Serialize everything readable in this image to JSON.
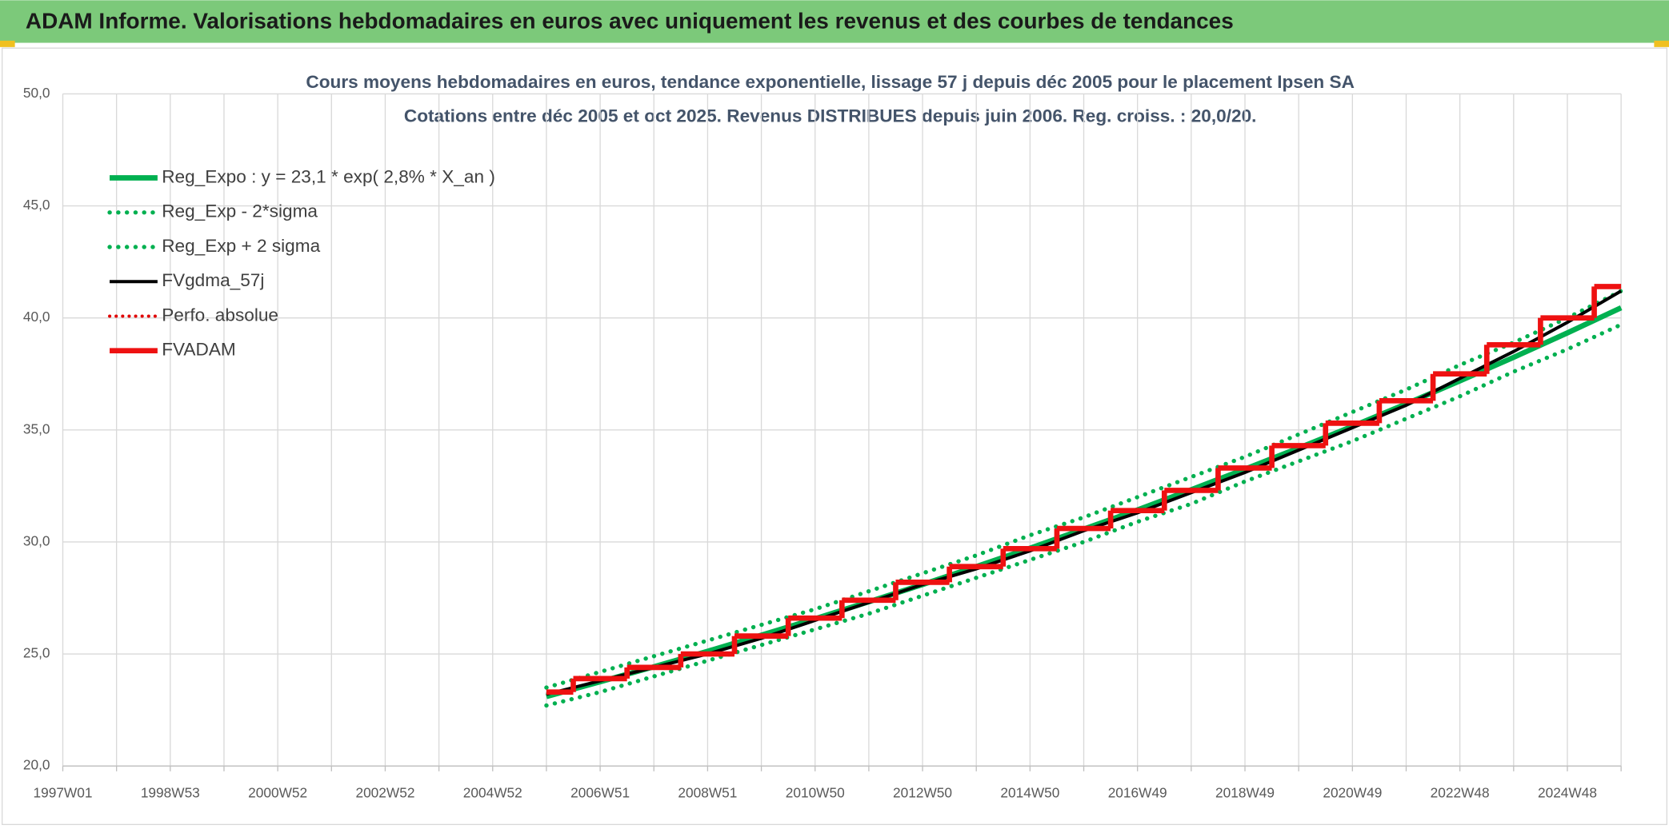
{
  "header": {
    "title": "ADAM Informe. Valorisations hebdomadaires en euros avec uniquement les revenus et des courbes de tendances"
  },
  "chart_data": {
    "type": "line",
    "title": "Cours moyens hebdomadaires en euros, tendance exponentielle, lissage 57 j depuis déc 2005 pour le placement Ipsen SA",
    "subtitle": "Cotations entre déc 2005 et oct 2025. Revenus DISTRIBUES depuis juin 2006. Reg. croiss. : 20,0/20.",
    "categories": [
      "1997W01",
      null,
      "1998W53",
      null,
      "2000W52",
      null,
      "2002W52",
      null,
      "2004W52",
      null,
      "2006W51",
      null,
      "2008W51",
      null,
      "2010W50",
      null,
      "2012W50",
      null,
      "2014W50",
      null,
      "2016W49",
      null,
      "2018W49",
      null,
      "2020W49",
      null,
      "2022W48",
      null,
      "2024W48",
      null
    ],
    "ylim": [
      20,
      50
    ],
    "yticks": [
      {
        "value": 20,
        "label": "20,0"
      },
      {
        "value": 25,
        "label": "25,0"
      },
      {
        "value": 30,
        "label": "30,0"
      },
      {
        "value": 35,
        "label": "35,0"
      },
      {
        "value": 40,
        "label": "40,0"
      },
      {
        "value": 45,
        "label": "45,0"
      },
      {
        "value": 50,
        "label": "50,0"
      }
    ],
    "grid": true,
    "legend": "top-left",
    "series": [
      {
        "name": "Reg_Expo : y = 23,1 * exp( 2,8% *  X_an )",
        "color": "#00b050",
        "style": "solid",
        "width": 5,
        "step": false,
        "values": [
          null,
          null,
          null,
          null,
          null,
          null,
          null,
          null,
          null,
          23.1,
          23.76,
          24.43,
          25.12,
          25.84,
          26.57,
          27.33,
          28.1,
          28.9,
          29.72,
          30.57,
          31.43,
          32.33,
          33.25,
          34.19,
          35.16,
          36.16,
          37.19,
          38.24,
          39.33,
          40.45
        ]
      },
      {
        "name": "Reg_Exp - 2*sigma",
        "color": "#00b050",
        "style": "dotted",
        "width": 4,
        "step": false,
        "values": [
          null,
          null,
          null,
          null,
          null,
          null,
          null,
          null,
          null,
          22.7,
          23.3,
          24.0,
          24.7,
          25.4,
          26.1,
          26.8,
          27.6,
          28.4,
          29.2,
          30.0,
          30.9,
          31.7,
          32.7,
          33.6,
          34.5,
          35.5,
          36.5,
          37.6,
          38.6,
          39.7
        ]
      },
      {
        "name": "Reg_Exp + 2 sigma",
        "color": "#00b050",
        "style": "dotted",
        "width": 4,
        "step": false,
        "values": [
          null,
          null,
          null,
          null,
          null,
          null,
          null,
          null,
          null,
          23.5,
          24.2,
          24.9,
          25.6,
          26.3,
          27.0,
          27.8,
          28.6,
          29.4,
          30.3,
          31.1,
          32.0,
          32.9,
          33.8,
          34.8,
          35.8,
          36.8,
          37.9,
          38.9,
          40.0,
          41.2
        ]
      },
      {
        "name": "FVgdma_57j",
        "color": "#000000",
        "style": "solid",
        "width": 3,
        "step": false,
        "values": [
          null,
          null,
          null,
          null,
          null,
          null,
          null,
          null,
          null,
          23.2,
          23.8,
          24.4,
          25.0,
          25.7,
          26.5,
          27.3,
          28.1,
          28.8,
          29.6,
          30.5,
          31.3,
          32.2,
          33.1,
          34.1,
          35.1,
          36.1,
          37.3,
          38.5,
          39.8,
          41.2
        ]
      },
      {
        "name": "Perfo. absolue",
        "color": "#e00000",
        "style": "dotted",
        "width": 3,
        "step": false,
        "values": [
          null,
          null,
          null,
          null,
          null,
          null,
          null,
          null,
          null,
          null,
          null,
          null,
          null,
          null,
          null,
          null,
          null,
          null,
          null,
          null,
          null,
          null,
          null,
          null,
          null,
          null,
          null,
          null,
          null,
          null
        ]
      },
      {
        "name": "FVADAM",
        "color": "#ee1111",
        "style": "solid",
        "width": 5,
        "step": true,
        "values": [
          null,
          null,
          null,
          null,
          null,
          null,
          null,
          null,
          null,
          23.3,
          23.9,
          24.4,
          25.0,
          25.8,
          26.6,
          27.4,
          28.2,
          28.9,
          29.7,
          30.6,
          31.4,
          32.3,
          33.3,
          34.3,
          35.3,
          36.3,
          37.5,
          38.8,
          40.0,
          41.4
        ]
      }
    ]
  }
}
